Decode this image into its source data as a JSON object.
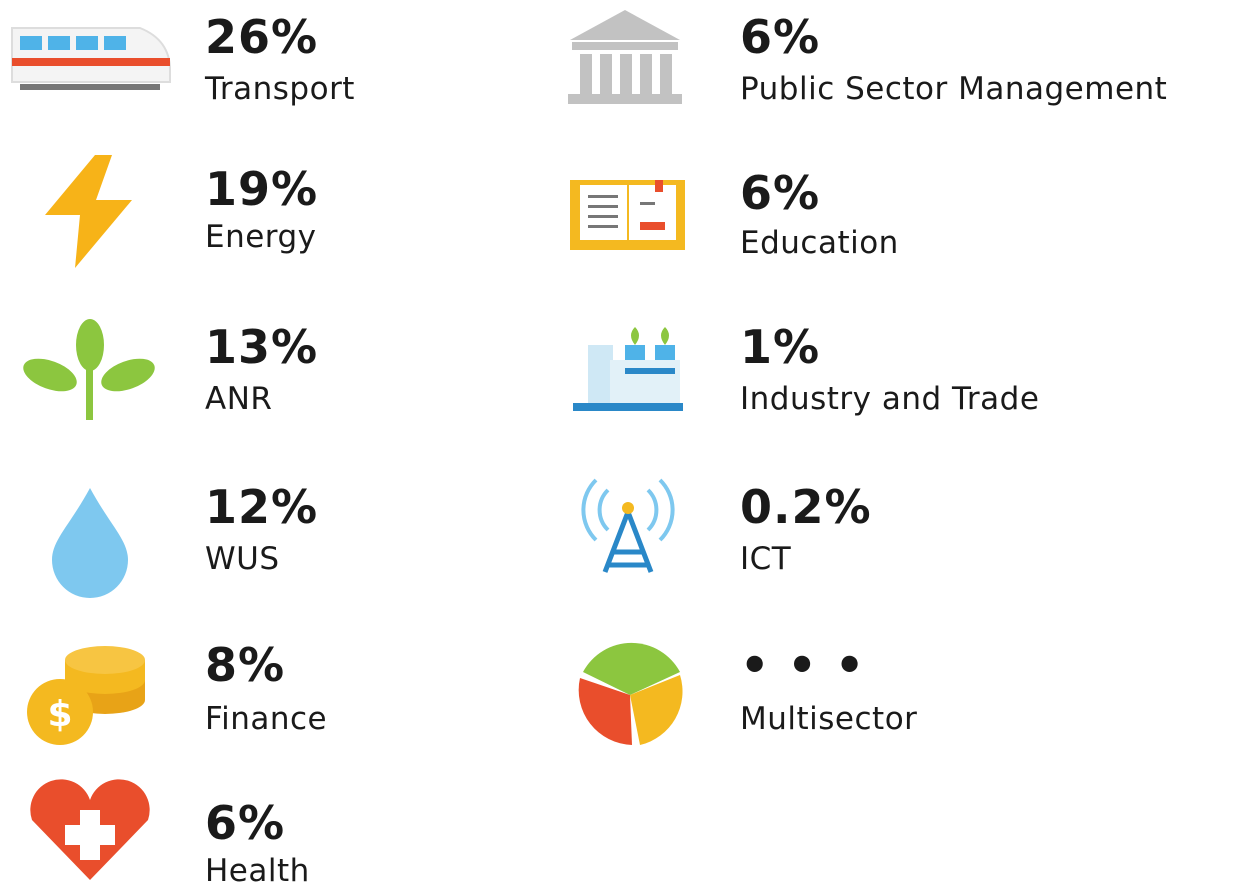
{
  "items": [
    {
      "value": "26%",
      "label": "Transport"
    },
    {
      "value": "19%",
      "label": "Energy"
    },
    {
      "value": "13%",
      "label": "ANR"
    },
    {
      "value": "12%",
      "label": "WUS"
    },
    {
      "value": "8%",
      "label": "Finance"
    },
    {
      "value": "6%",
      "label": "Health"
    },
    {
      "value": "6%",
      "label": "Public Sector Management"
    },
    {
      "value": "6%",
      "label": "Education"
    },
    {
      "value": "1%",
      "label": "Industry and Trade"
    },
    {
      "value": "0.2%",
      "label": "ICT"
    },
    {
      "value": "• • •",
      "label": "Multisector"
    }
  ]
}
